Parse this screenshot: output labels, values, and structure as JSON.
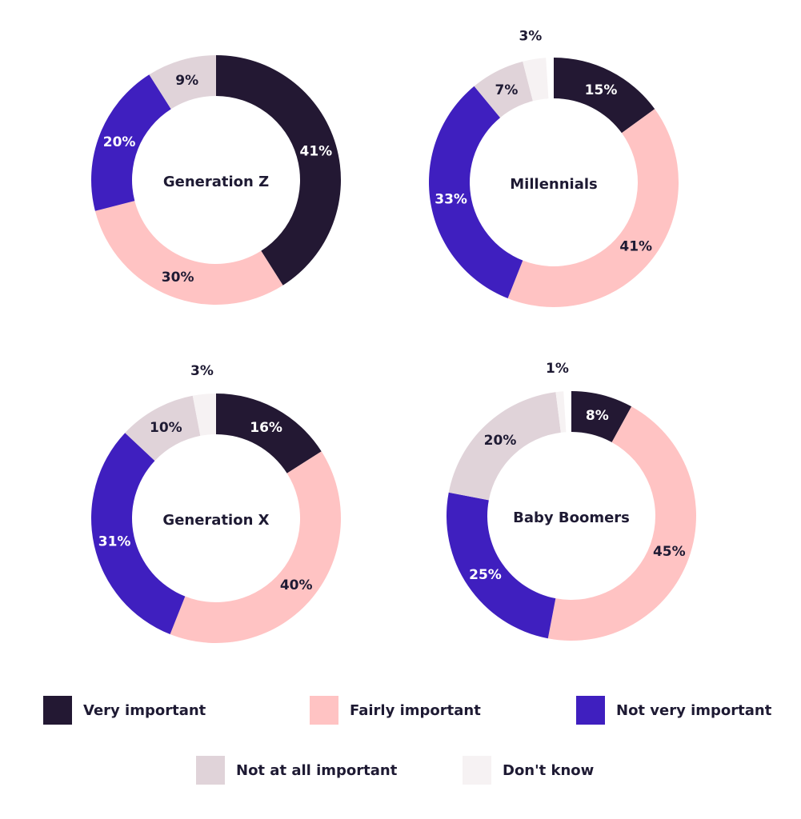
{
  "chart_data": {
    "type": "pie",
    "variant": "donut",
    "categories": [
      "Very important",
      "Fairly important",
      "Not very important",
      "Not at all important",
      "Don't know"
    ],
    "colors": [
      "#231833",
      "#ffc3c3",
      "#3f1fbf",
      "#e0d3d9",
      "#f6f2f3"
    ],
    "charts": [
      {
        "title": "Generation Z",
        "values": [
          41,
          30,
          20,
          9,
          0
        ]
      },
      {
        "title": "Millennials",
        "values": [
          15,
          41,
          33,
          7,
          3
        ]
      },
      {
        "title": "Generation X",
        "values": [
          16,
          40,
          31,
          10,
          3
        ]
      },
      {
        "title": "Baby Boomers",
        "values": [
          8,
          45,
          25,
          20,
          1
        ]
      }
    ],
    "unit": "%",
    "legend_position": "bottom"
  }
}
